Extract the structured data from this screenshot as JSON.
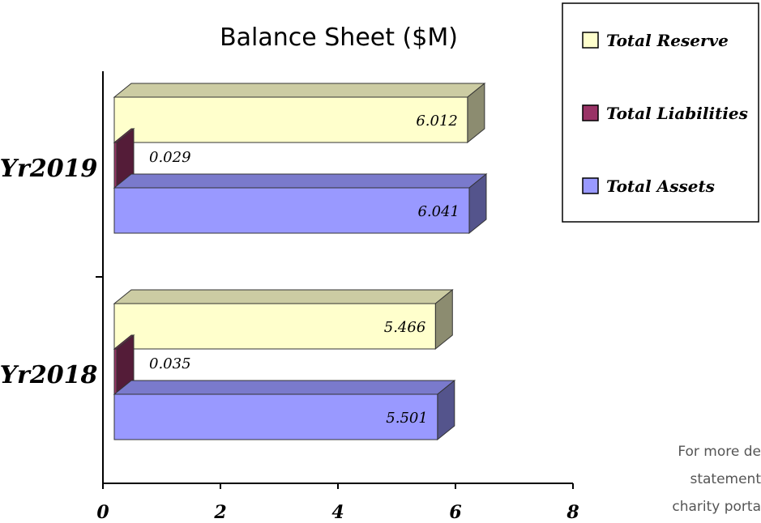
{
  "chart_data": {
    "type": "bar",
    "orientation": "horizontal",
    "title": "Balance Sheet ($M)",
    "categories": [
      "Yr2018",
      "Yr2019"
    ],
    "series": [
      {
        "name": "Total Assets",
        "values": [
          5.501,
          6.041
        ],
        "color": "#9999ff"
      },
      {
        "name": "Total Liabilities",
        "values": [
          0.035,
          0.029
        ],
        "color": "#993366"
      },
      {
        "name": "Total Reserve",
        "values": [
          5.466,
          6.012
        ],
        "color": "#ffffcc"
      }
    ],
    "data_labels": [
      [
        "5.501",
        "0.035",
        "5.466"
      ],
      [
        "6.041",
        "0.029",
        "6.012"
      ]
    ],
    "x_ticks": [
      "0",
      "2",
      "4",
      "6",
      "8"
    ],
    "xlim": [
      0,
      8
    ],
    "legend_entries": [
      "Total Reserve",
      "Total Liabilities",
      "Total Assets"
    ],
    "legend_position": "top-right",
    "grid": false,
    "three_d": true
  },
  "footnote": [
    "For more de",
    "statement",
    "charity porta"
  ]
}
